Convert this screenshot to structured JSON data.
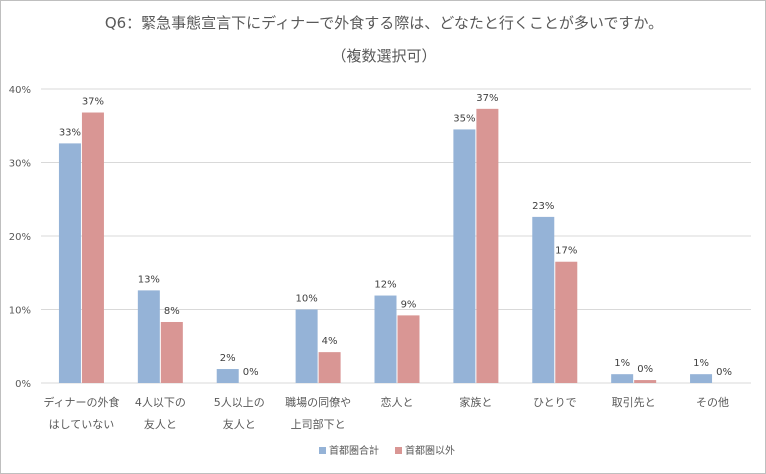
{
  "chart_data": {
    "type": "bar",
    "title": "Q6：緊急事態宣言下にディナーで外食する際は、どなたと行くことが多いですか。",
    "subtitle": "（複数選択可）",
    "xlabel": "",
    "ylabel": "",
    "ylim": [
      0,
      40
    ],
    "yticks": [
      "0%",
      "10%",
      "20%",
      "30%",
      "40%"
    ],
    "ytick_values": [
      0,
      10,
      20,
      30,
      40
    ],
    "grid": true,
    "legend_position": "bottom",
    "categories": [
      [
        "ディナーの外食",
        "はしていない"
      ],
      [
        "4人以下の",
        "友人と"
      ],
      [
        "5人以上の",
        "友人と"
      ],
      [
        "職場の同僚や",
        "上司部下と"
      ],
      [
        "恋人と"
      ],
      [
        "家族と"
      ],
      [
        "ひとりで"
      ],
      [
        "取引先と"
      ],
      [
        "その他"
      ]
    ],
    "series": [
      {
        "name": "首都圏合計",
        "color": "#95b3d7",
        "values": [
          32.6,
          12.6,
          1.9,
          10.0,
          11.9,
          34.5,
          22.6,
          1.2,
          1.2
        ],
        "labels": [
          "33%",
          "13%",
          "2%",
          "10%",
          "12%",
          "35%",
          "23%",
          "1%",
          "1%"
        ]
      },
      {
        "name": "首都圏以外",
        "color": "#d99694",
        "values": [
          36.8,
          8.3,
          0,
          4.2,
          9.2,
          37.3,
          16.5,
          0.4,
          0
        ],
        "labels": [
          "37%",
          "8%",
          "0%",
          "4%",
          "9%",
          "37%",
          "17%",
          "0%",
          "0%"
        ]
      }
    ]
  }
}
